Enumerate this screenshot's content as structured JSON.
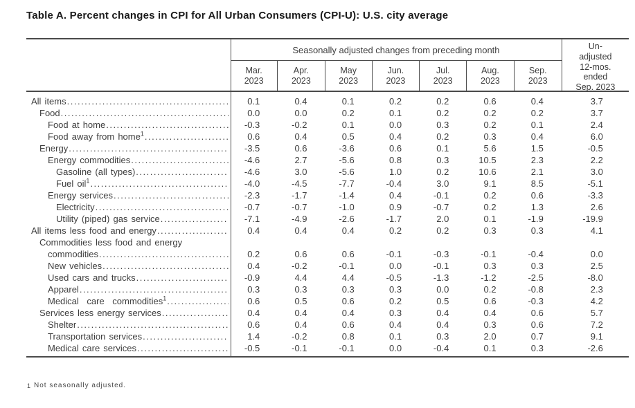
{
  "page": {
    "title": "Table A. Percent changes in CPI for All Urban Consumers (CPI-U): U.S. city average"
  },
  "colors": {
    "text": "#3d3d3d",
    "line": "#4a4a4a"
  },
  "table": {
    "header": {
      "seasonally_adjusted": "Seasonally adjusted changes from preceding month",
      "unadjusted": "Un-\nadjusted\n12-mos.\nended\nSep. 2023",
      "months": [
        "Mar.\n2023",
        "Apr.\n2023",
        "May\n2023",
        "Jun.\n2023",
        "Jul.\n2023",
        "Aug.\n2023",
        "Sep.\n2023"
      ]
    },
    "rows": [
      {
        "label": "All items",
        "indent": 0,
        "values": [
          "0.1",
          "0.4",
          "0.1",
          "0.2",
          "0.2",
          "0.6",
          "0.4",
          "3.7"
        ]
      },
      {
        "label": "Food",
        "indent": 1,
        "values": [
          "0.0",
          "0.0",
          "0.2",
          "0.1",
          "0.2",
          "0.2",
          "0.2",
          "3.7"
        ]
      },
      {
        "label": "Food at home",
        "indent": 2,
        "values": [
          "-0.3",
          "-0.2",
          "0.1",
          "0.0",
          "0.3",
          "0.2",
          "0.1",
          "2.4"
        ]
      },
      {
        "label": "Food away from home",
        "footnote": "1",
        "indent": 2,
        "values": [
          "0.6",
          "0.4",
          "0.5",
          "0.4",
          "0.2",
          "0.3",
          "0.4",
          "6.0"
        ]
      },
      {
        "label": "Energy",
        "indent": 1,
        "values": [
          "-3.5",
          "0.6",
          "-3.6",
          "0.6",
          "0.1",
          "5.6",
          "1.5",
          "-0.5"
        ]
      },
      {
        "label": "Energy commodities",
        "indent": 2,
        "values": [
          "-4.6",
          "2.7",
          "-5.6",
          "0.8",
          "0.3",
          "10.5",
          "2.3",
          "2.2"
        ]
      },
      {
        "label": "Gasoline (all types)",
        "indent": 3,
        "values": [
          "-4.6",
          "3.0",
          "-5.6",
          "1.0",
          "0.2",
          "10.6",
          "2.1",
          "3.0"
        ]
      },
      {
        "label": "Fuel oil",
        "footnote": "1",
        "indent": 3,
        "values": [
          "-4.0",
          "-4.5",
          "-7.7",
          "-0.4",
          "3.0",
          "9.1",
          "8.5",
          "-5.1"
        ]
      },
      {
        "label": "Energy services",
        "indent": 2,
        "values": [
          "-2.3",
          "-1.7",
          "-1.4",
          "0.4",
          "-0.1",
          "0.2",
          "0.6",
          "-3.3"
        ]
      },
      {
        "label": "Electricity",
        "indent": 3,
        "values": [
          "-0.7",
          "-0.7",
          "-1.0",
          "0.9",
          "-0.7",
          "0.2",
          "1.3",
          "2.6"
        ]
      },
      {
        "label": "Utility (piped) gas service",
        "indent": 3,
        "values": [
          "-7.1",
          "-4.9",
          "-2.6",
          "-1.7",
          "2.0",
          "0.1",
          "-1.9",
          "-19.9"
        ]
      },
      {
        "label": "All items less food and energy",
        "indent": 0,
        "values": [
          "0.4",
          "0.4",
          "0.4",
          "0.2",
          "0.2",
          "0.3",
          "0.3",
          "4.1"
        ]
      },
      {
        "label": "Commodities less food and energy",
        "label2": "commodities",
        "indent": 1,
        "values": [
          "0.2",
          "0.6",
          "0.6",
          "-0.1",
          "-0.3",
          "-0.1",
          "-0.4",
          "0.0"
        ]
      },
      {
        "label": "New vehicles",
        "indent": 2,
        "values": [
          "0.4",
          "-0.2",
          "-0.1",
          "0.0",
          "-0.1",
          "0.3",
          "0.3",
          "2.5"
        ]
      },
      {
        "label": "Used cars and trucks",
        "indent": 2,
        "values": [
          "-0.9",
          "4.4",
          "4.4",
          "-0.5",
          "-1.3",
          "-1.2",
          "-2.5",
          "-8.0"
        ]
      },
      {
        "label": "Apparel",
        "indent": 2,
        "values": [
          "0.3",
          "0.3",
          "0.3",
          "0.3",
          "0.0",
          "0.2",
          "-0.8",
          "2.3"
        ]
      },
      {
        "label": "Medical care commodities",
        "footnote": "1",
        "indent": 2,
        "spread": true,
        "values": [
          "0.6",
          "0.5",
          "0.6",
          "0.2",
          "0.5",
          "0.6",
          "-0.3",
          "4.2"
        ]
      },
      {
        "label": "Services less energy services",
        "indent": 1,
        "values": [
          "0.4",
          "0.4",
          "0.4",
          "0.3",
          "0.4",
          "0.4",
          "0.6",
          "5.7"
        ]
      },
      {
        "label": "Shelter",
        "indent": 2,
        "values": [
          "0.6",
          "0.4",
          "0.6",
          "0.4",
          "0.4",
          "0.3",
          "0.6",
          "7.2"
        ]
      },
      {
        "label": "Transportation services",
        "indent": 2,
        "values": [
          "1.4",
          "-0.2",
          "0.8",
          "0.1",
          "0.3",
          "2.0",
          "0.7",
          "9.1"
        ]
      },
      {
        "label": "Medical care services",
        "indent": 2,
        "values": [
          "-0.5",
          "-0.1",
          "-0.1",
          "0.0",
          "-0.4",
          "0.1",
          "0.3",
          "-2.6"
        ]
      }
    ]
  },
  "footnote": {
    "marker": "1",
    "text": "Not seasonally adjusted."
  }
}
